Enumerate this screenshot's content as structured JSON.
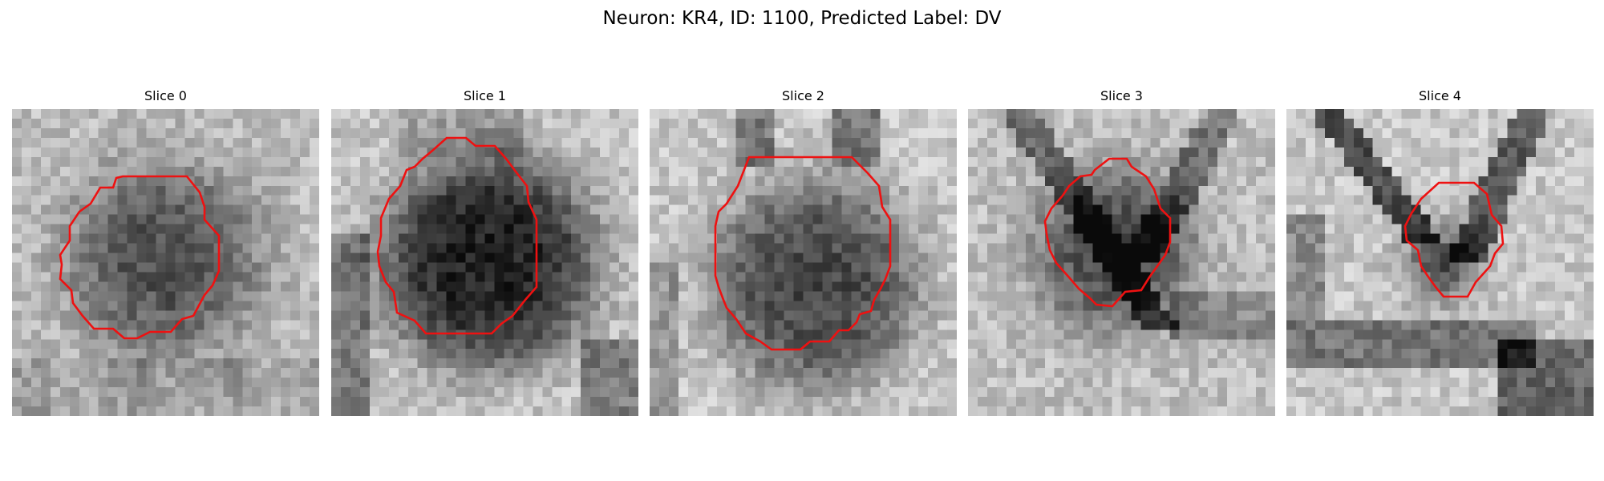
{
  "figure": {
    "suptitle": "Neuron: KR4, ID: 1100, Predicted Label: DV",
    "colormap": "gray",
    "contour_color": "#ee1111"
  },
  "panels": [
    {
      "title": "Slice 0"
    },
    {
      "title": "Slice 1"
    },
    {
      "title": "Slice 2"
    },
    {
      "title": "Slice 3"
    },
    {
      "title": "Slice 4"
    }
  ]
}
